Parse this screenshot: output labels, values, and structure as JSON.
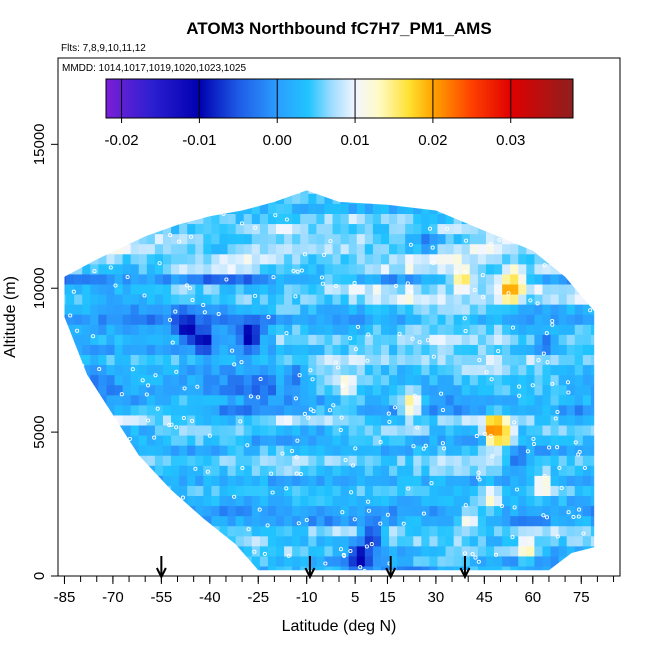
{
  "chart_data": {
    "type": "heatmap",
    "title": "ATOM3 Northbound fC7H7_PM1_AMS",
    "flights_note": "Flts: 7,8,9,10,11,12",
    "dates_note": "MMDD: 1014,1017,1019,1020,1023,1025",
    "xlabel": "Latitude (deg N)",
    "ylabel": "Altitude (m)",
    "xlim": [
      -87,
      87
    ],
    "ylim": [
      0,
      18000
    ],
    "x_ticks": [
      -85,
      -70,
      -55,
      -40,
      -25,
      -10,
      5,
      15,
      30,
      45,
      60,
      75
    ],
    "x_tick_labels": [
      "-85",
      "-70",
      "-55",
      "-40",
      "-25",
      "-10",
      "5",
      "15",
      "30",
      "45",
      "60",
      "75"
    ],
    "x_minor_step": 5,
    "y_ticks": [
      0,
      5000,
      10000,
      15000
    ],
    "y_tick_labels": [
      "0",
      "5000",
      "10000",
      "15000"
    ],
    "colorbar": {
      "min": -0.022,
      "max": 0.038,
      "ticks": [
        -0.02,
        -0.01,
        0.0,
        0.01,
        0.02,
        0.03
      ],
      "tick_labels": [
        "-0.02",
        "-0.01",
        "0.00",
        "0.01",
        "0.02",
        "0.03"
      ],
      "gradient_stops": [
        {
          "value": -0.022,
          "color": "#7a1fd6"
        },
        {
          "value": -0.016,
          "color": "#2b1fd0"
        },
        {
          "value": -0.01,
          "color": "#0000b0"
        },
        {
          "value": -0.005,
          "color": "#1e5be6"
        },
        {
          "value": 0.0,
          "color": "#2b9dff"
        },
        {
          "value": 0.004,
          "color": "#21c4ff"
        },
        {
          "value": 0.007,
          "color": "#9fdcff"
        },
        {
          "value": 0.01,
          "color": "#f2f6ff"
        },
        {
          "value": 0.013,
          "color": "#fffbc8"
        },
        {
          "value": 0.017,
          "color": "#ffe030"
        },
        {
          "value": 0.02,
          "color": "#ffa400"
        },
        {
          "value": 0.025,
          "color": "#ff4000"
        },
        {
          "value": 0.03,
          "color": "#e00000"
        },
        {
          "value": 0.038,
          "color": "#8e1f1f"
        }
      ]
    },
    "profile_latitudes": [
      -55,
      -9,
      16,
      39
    ],
    "envelope": [
      {
        "lat": -85,
        "alt_top": 10400
      },
      {
        "lat": -75,
        "alt_top": 11000
      },
      {
        "lat": -60,
        "alt_top": 11800
      },
      {
        "lat": -50,
        "alt_top": 12200
      },
      {
        "lat": -40,
        "alt_top": 12500
      },
      {
        "lat": -30,
        "alt_top": 12700
      },
      {
        "lat": -20,
        "alt_top": 13000
      },
      {
        "lat": -10,
        "alt_top": 13400
      },
      {
        "lat": 0,
        "alt_top": 13000
      },
      {
        "lat": 15,
        "alt_top": 12900
      },
      {
        "lat": 30,
        "alt_top": 12700
      },
      {
        "lat": 45,
        "alt_top": 12000
      },
      {
        "lat": 60,
        "alt_top": 11300
      },
      {
        "lat": 70,
        "alt_top": 10400
      },
      {
        "lat": 79,
        "alt_top": 9200
      }
    ],
    "envelope_bottom": [
      {
        "lat": -85,
        "alt_bot": 9000
      },
      {
        "lat": -78,
        "alt_bot": 7000
      },
      {
        "lat": -70,
        "alt_bot": 5600
      },
      {
        "lat": -62,
        "alt_bot": 4200
      },
      {
        "lat": -52,
        "alt_bot": 3000
      },
      {
        "lat": -42,
        "alt_bot": 2000
      },
      {
        "lat": -32,
        "alt_bot": 1100
      },
      {
        "lat": -25,
        "alt_bot": 200
      },
      {
        "lat": 65,
        "alt_bot": 200
      },
      {
        "lat": 72,
        "alt_bot": 800
      },
      {
        "lat": 79,
        "alt_bot": 1000
      }
    ],
    "highlights": [
      {
        "lat": 47,
        "alt": 4900,
        "value": 0.026
      },
      {
        "lat": 50,
        "alt": 4700,
        "value": 0.018
      },
      {
        "lat": 52,
        "alt": 9800,
        "value": 0.024
      },
      {
        "lat": 53,
        "alt": 10200,
        "value": 0.016
      },
      {
        "lat": 37,
        "alt": 10200,
        "value": 0.017
      },
      {
        "lat": 21,
        "alt": 5800,
        "value": 0.016
      },
      {
        "lat": 1,
        "alt": 6500,
        "value": 0.013
      },
      {
        "lat": 57,
        "alt": 800,
        "value": 0.015
      },
      {
        "lat": 62,
        "alt": 3000,
        "value": 0.014
      },
      {
        "lat": 46,
        "alt": 2500,
        "value": 0.013
      },
      {
        "lat": 39,
        "alt": 1800,
        "value": 0.012
      },
      {
        "lat": -48,
        "alt": 8400,
        "value": -0.012
      },
      {
        "lat": -43,
        "alt": 8000,
        "value": -0.011
      },
      {
        "lat": -29,
        "alt": 8200,
        "value": -0.012
      },
      {
        "lat": 5,
        "alt": 500,
        "value": -0.012
      },
      {
        "lat": 9,
        "alt": 1200,
        "value": -0.009
      },
      {
        "lat": 63,
        "alt": 7900,
        "value": -0.004
      },
      {
        "lat": 54,
        "alt": 3900,
        "value": -0.004
      },
      {
        "lat": -15,
        "alt": 6800,
        "value": -0.004
      },
      {
        "lat": 26,
        "alt": 11500,
        "value": -0.003
      }
    ]
  }
}
